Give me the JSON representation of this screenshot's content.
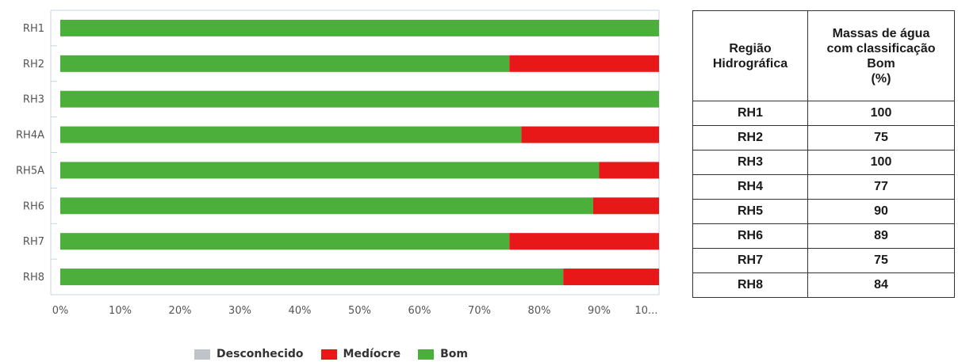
{
  "chart_data": {
    "type": "bar",
    "orientation": "horizontal",
    "stacked": true,
    "categories": [
      "RH1",
      "RH2",
      "RH3",
      "RH4A",
      "RH5A",
      "RH6",
      "RH7",
      "RH8"
    ],
    "series": [
      {
        "name": "Desconhecido",
        "color": "#c0c4ca",
        "values": [
          0,
          0,
          0,
          0,
          0,
          0,
          0,
          0
        ]
      },
      {
        "name": "Medíocre",
        "color": "#e81818",
        "values": [
          0,
          25,
          0,
          23,
          10,
          11,
          25,
          16
        ]
      },
      {
        "name": "Bom",
        "color": "#4caf3c",
        "values": [
          100,
          75,
          100,
          77,
          90,
          89,
          75,
          84
        ]
      }
    ],
    "xlim": [
      0,
      100
    ],
    "x_ticks": [
      "0%",
      "10%",
      "20%",
      "30%",
      "40%",
      "50%",
      "60%",
      "70%",
      "80%",
      "90%",
      "10..."
    ],
    "legend_position": "bottom",
    "grid": false
  },
  "legend": [
    "Desconhecido",
    "Medíocre",
    "Bom"
  ],
  "table": {
    "header_region": [
      "Região",
      "Hidrográfica"
    ],
    "header_value": [
      "Massas de água",
      "com classificação",
      "Bom",
      "(%)"
    ],
    "rows": [
      {
        "region": "RH1",
        "value": "100"
      },
      {
        "region": "RH2",
        "value": "75"
      },
      {
        "region": "RH3",
        "value": "100"
      },
      {
        "region": "RH4",
        "value": "77"
      },
      {
        "region": "RH5",
        "value": "90"
      },
      {
        "region": "RH6",
        "value": "89"
      },
      {
        "region": "RH7",
        "value": "75"
      },
      {
        "region": "RH8",
        "value": "84"
      }
    ]
  }
}
